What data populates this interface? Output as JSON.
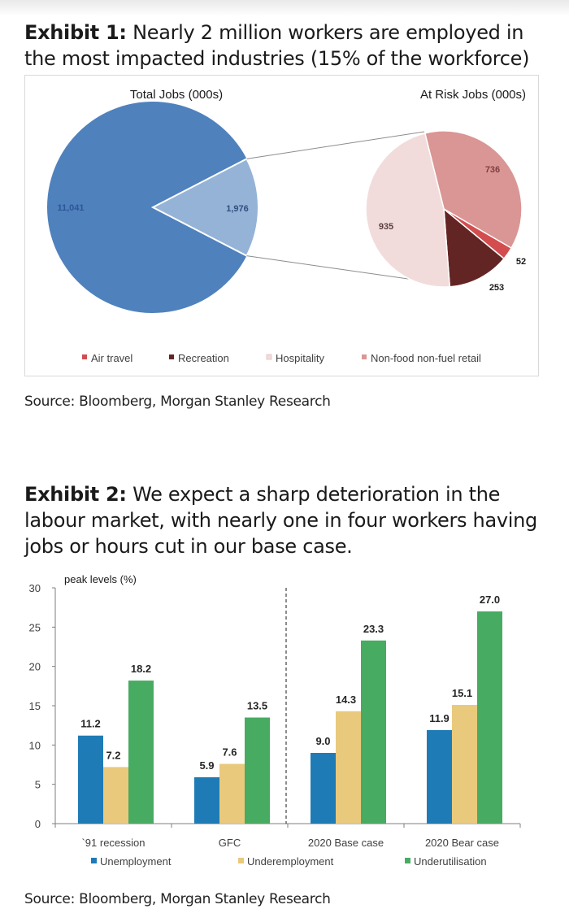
{
  "exhibit1": {
    "label": "Exhibit 1:",
    "title": "Nearly 2 million workers are employed in the most impacted industries (15% of the workforce)",
    "source": "Source: Bloomberg, Morgan Stanley Research"
  },
  "exhibit2": {
    "label": "Exhibit 2:",
    "title": "We expect a sharp deterioration in the labour market, with nearly one in four workers having jobs or hours cut in our base case.",
    "source": "Source: Bloomberg, Morgan Stanley Research"
  },
  "chart_data": [
    {
      "type": "pie",
      "title": "Total Jobs (000s)",
      "slices": [
        {
          "label": "",
          "value": 11041,
          "value_label": "11,041",
          "color": "#4f81bd"
        },
        {
          "label": "",
          "value": 1976,
          "value_label": "1,976",
          "color": "#95b3d7"
        }
      ]
    },
    {
      "type": "pie",
      "title": "At Risk Jobs (000s)",
      "legend_position": "bottom",
      "slices": [
        {
          "label": "Non-food non-fuel retail",
          "value": 736,
          "value_label": "736",
          "color": "#da9694"
        },
        {
          "label": "Air travel",
          "value": 52,
          "value_label": "52",
          "color": "#d34d4f"
        },
        {
          "label": "Recreation",
          "value": 253,
          "value_label": "253",
          "color": "#632523"
        },
        {
          "label": "Hospitality",
          "value": 935,
          "value_label": "935",
          "color": "#f2dcdb"
        }
      ],
      "legend": [
        "Air travel",
        "Recreation",
        "Hospitality",
        "Non-food non-fuel retail"
      ]
    },
    {
      "type": "bar",
      "ylabel": "peak levels (%)",
      "ylim": [
        0,
        30
      ],
      "yticks": [
        0,
        5,
        10,
        15,
        20,
        25,
        30
      ],
      "categories": [
        "`91 recession",
        "GFC",
        "2020 Base case",
        "2020 Bear case"
      ],
      "series": [
        {
          "name": "Unemployment",
          "color": "#1f7bb6",
          "values": [
            11.2,
            5.9,
            9.0,
            11.9
          ],
          "labels": [
            "11.2",
            "5.9",
            "9.0",
            "11.9"
          ]
        },
        {
          "name": "Underemployment",
          "color": "#e9c97c",
          "values": [
            7.2,
            7.6,
            14.3,
            15.1
          ],
          "labels": [
            "7.2",
            "7.6",
            "14.3",
            "15.1"
          ]
        },
        {
          "name": "Underutilisation",
          "color": "#48ab62",
          "values": [
            18.2,
            13.5,
            23.3,
            27.0
          ],
          "labels": [
            "18.2",
            "13.5",
            "23.3",
            "27.0"
          ]
        }
      ],
      "divider_after_category": 1,
      "legend_position": "bottom"
    }
  ]
}
